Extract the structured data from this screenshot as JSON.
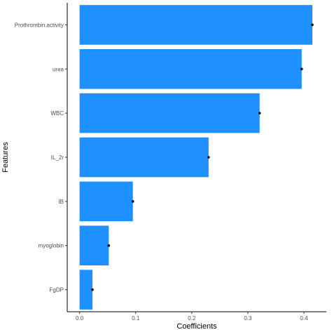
{
  "chart_data": {
    "type": "bar",
    "orientation": "horizontal",
    "categories": [
      "Prothrombin.activity",
      "urea",
      "WBC",
      "IL_2r",
      "IB",
      "myoglobin",
      "FgDP"
    ],
    "values": [
      0.415,
      0.396,
      0.321,
      0.23,
      0.095,
      0.052,
      0.023
    ],
    "point_values": [
      0.415,
      0.396,
      0.321,
      0.23,
      0.095,
      0.052,
      0.023
    ],
    "xlabel": "Coefficients",
    "ylabel": "Features",
    "xlim": [
      -0.022,
      0.44
    ],
    "xticks": [
      0.0,
      0.1,
      0.2,
      0.3,
      0.4
    ],
    "xtick_labels": [
      "0.0",
      "0.1",
      "0.2",
      "0.3",
      "0.4"
    ],
    "bar_color": "#1E90FF",
    "point_color": "#000000",
    "grid": false,
    "legend": "none"
  }
}
